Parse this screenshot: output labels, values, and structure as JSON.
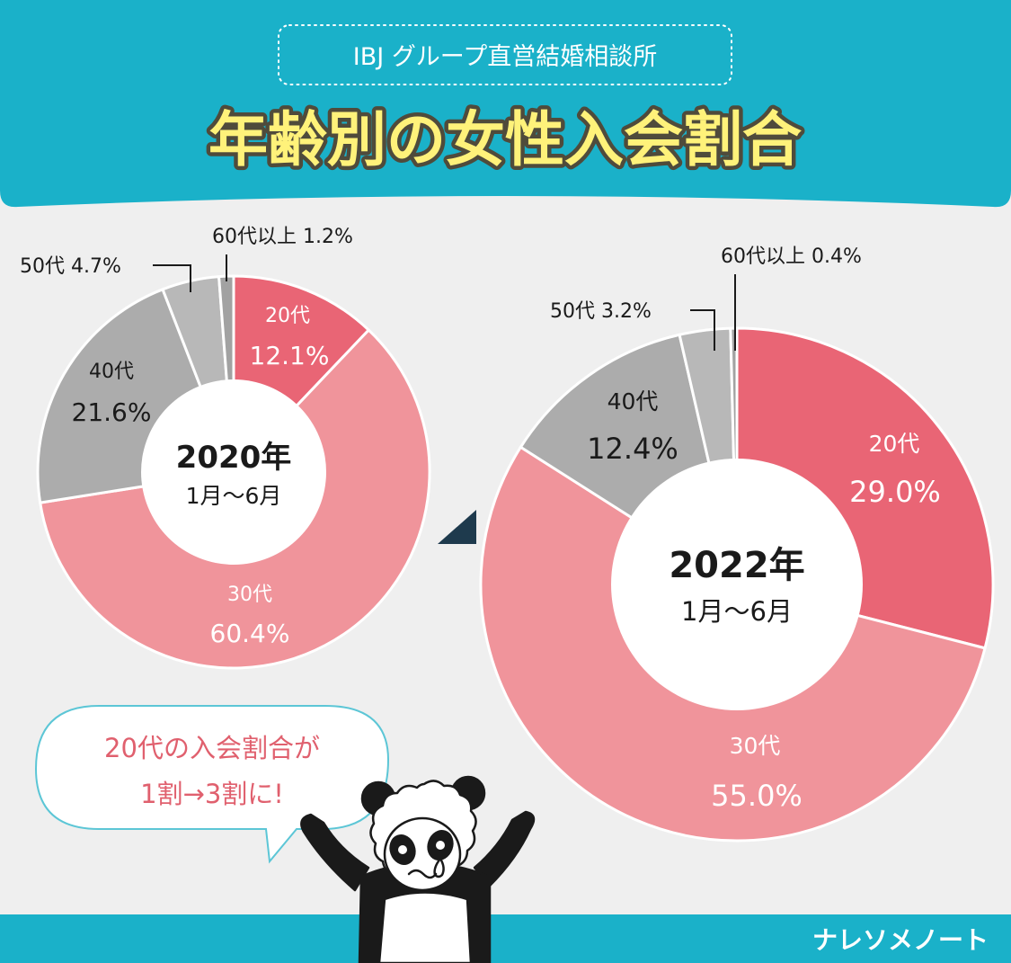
{
  "header": {
    "subtitle": "IBJ グループ直営結婚相談所",
    "title": "年齢別の女性入会割合"
  },
  "colors": {
    "teal": "#1ab1c9",
    "background": "#efefef",
    "title_yellow": "#fff27a",
    "age_20s": "#e96575",
    "age_30s": "#f0949b",
    "age_40s": "#acacac",
    "age_50s": "#b8b8b8",
    "age_60s": "#a2a2a2",
    "bubble_text": "#e0606e",
    "arrow": "#1e3a4d"
  },
  "chart_data": [
    {
      "type": "pie",
      "center_label": "2020年",
      "center_sublabel": "1月～6月",
      "series": [
        {
          "name": "20代",
          "value": 12.1,
          "label": "12.1%"
        },
        {
          "name": "30代",
          "value": 60.4,
          "label": "60.4%"
        },
        {
          "name": "40代",
          "value": 21.6,
          "label": "21.6%"
        },
        {
          "name": "50代",
          "value": 4.7,
          "label": "50代 4.7%"
        },
        {
          "name": "60代以上",
          "value": 1.2,
          "label": "60代以上 1.2%"
        }
      ]
    },
    {
      "type": "pie",
      "center_label": "2022年",
      "center_sublabel": "1月～6月",
      "series": [
        {
          "name": "20代",
          "value": 29.0,
          "label": "29.0%"
        },
        {
          "name": "30代",
          "value": 55.0,
          "label": "55.0%"
        },
        {
          "name": "40代",
          "value": 12.4,
          "label": "12.4%"
        },
        {
          "name": "50代",
          "value": 3.2,
          "label": "50代 3.2%"
        },
        {
          "name": "60代以上",
          "value": 0.4,
          "label": "60代以上 0.4%"
        }
      ]
    }
  ],
  "bubble": {
    "line1": "20代の入会割合が",
    "line2": "1割→3割に!"
  },
  "footer": {
    "brand": "ナレソメノート"
  }
}
